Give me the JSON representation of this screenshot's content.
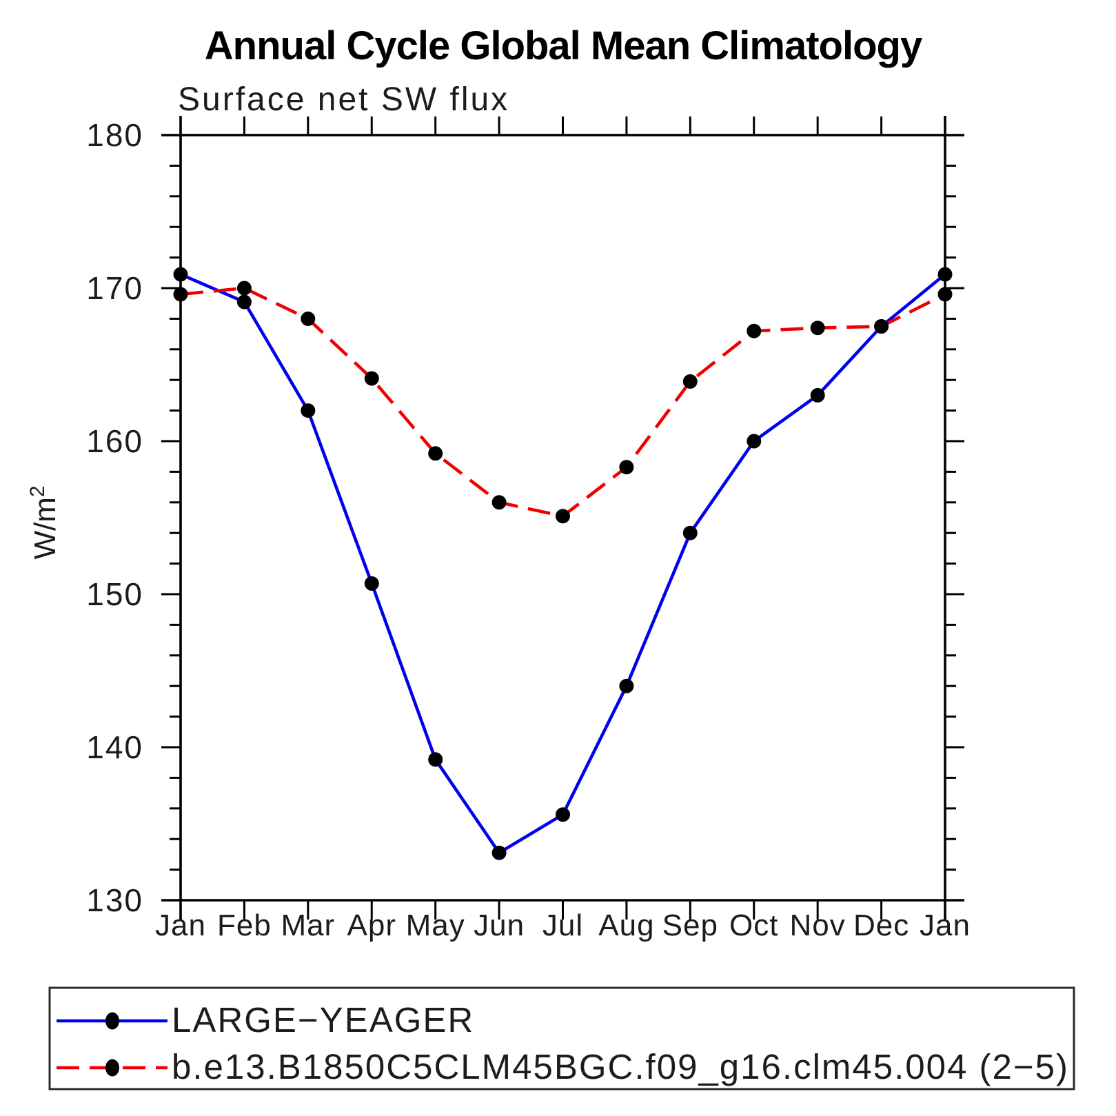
{
  "chart_data": {
    "type": "line",
    "title": "Annual Cycle Global Mean Climatology",
    "subtitle": "Surface net SW flux",
    "ylabel": "W/m²",
    "ylabel_base": "W/m",
    "ylabel_sup": "2",
    "categories": [
      "Jan",
      "Feb",
      "Mar",
      "Apr",
      "May",
      "Jun",
      "Jul",
      "Aug",
      "Sep",
      "Oct",
      "Nov",
      "Dec",
      "Jan"
    ],
    "series": [
      {
        "name": "LARGE−YEAGER",
        "color": "#0000ee",
        "line_style": "solid",
        "marker": "circle",
        "marker_color": "#000000",
        "values": [
          170.9,
          169.1,
          162.0,
          150.7,
          139.2,
          133.1,
          135.6,
          144.0,
          154.0,
          160.0,
          163.0,
          167.5,
          170.9
        ]
      },
      {
        "name": "b.e13.B1850C5CLM45BGC.f09_g16.clm45.004 (2−5)",
        "color": "#ee0000",
        "line_style": "dashed",
        "marker": "circle",
        "marker_color": "#000000",
        "values": [
          169.6,
          170.0,
          168.0,
          164.1,
          159.2,
          156.0,
          155.1,
          158.3,
          163.9,
          167.2,
          167.4,
          167.5,
          169.6
        ]
      }
    ],
    "ylim": [
      130,
      180
    ],
    "y_major_ticks": [
      130,
      140,
      150,
      160,
      170,
      180
    ],
    "y_tick_labels": [
      "130",
      "140",
      "150",
      "160",
      "170",
      "180"
    ],
    "y_minor_step": 2,
    "grid": false,
    "legend_position": "bottom",
    "axis_color": "#000000",
    "background": "#ffffff"
  }
}
